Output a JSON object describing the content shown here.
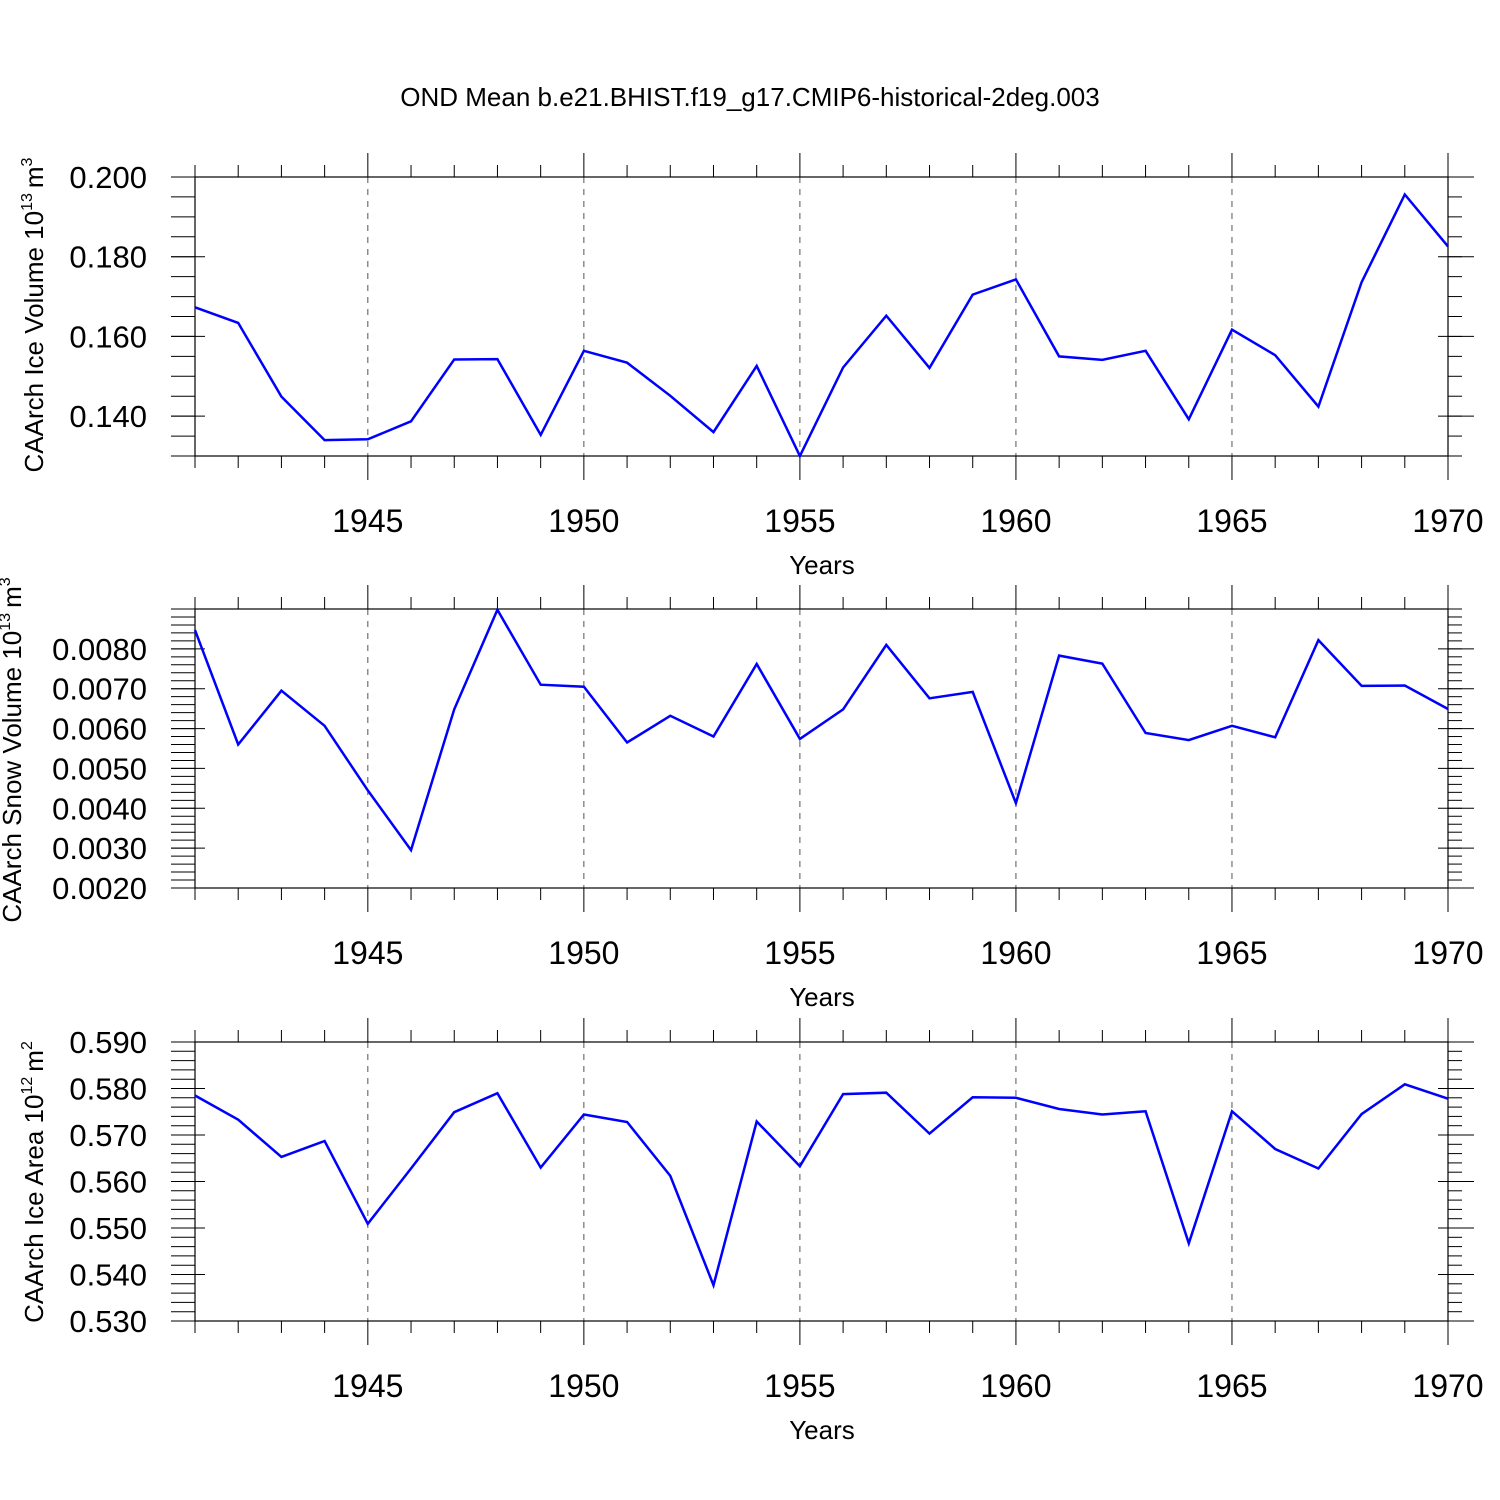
{
  "chart_data": [
    {
      "type": "line",
      "title": "OND Mean b.e21.BHIST.f19_g17.CMIP6-historical-2deg.003",
      "xlabel": "Years",
      "ylabel": "CAArch Ice Volume 10",
      "ylabel_exponent": "13",
      "ylabel_unit": "m",
      "ylabel_unit_exponent": "3",
      "xlim": [
        1941,
        1970
      ],
      "ylim": [
        0.13,
        0.2
      ],
      "x_ticks": [
        "1945",
        "1950",
        "1955",
        "1960",
        "1965",
        "1970"
      ],
      "y_ticks": [
        "0.140",
        "0.160",
        "0.180",
        "0.200"
      ],
      "grid": "dashed vertical at major x ticks",
      "color": "#0000ff",
      "series": [
        {
          "name": "CAArch Ice Volume",
          "x": [
            1941,
            1942,
            1943,
            1944,
            1945,
            1946,
            1947,
            1948,
            1949,
            1950,
            1951,
            1952,
            1953,
            1954,
            1955,
            1956,
            1957,
            1958,
            1959,
            1960,
            1961,
            1962,
            1963,
            1964,
            1965,
            1966,
            1967,
            1968,
            1969,
            1970
          ],
          "values": [
            0.1673,
            0.1634,
            0.1449,
            0.134,
            0.1342,
            0.1387,
            0.1542,
            0.1543,
            0.1353,
            0.1564,
            0.1534,
            0.1451,
            0.136,
            0.1526,
            0.13,
            0.1522,
            0.1652,
            0.1521,
            0.1705,
            0.1743,
            0.155,
            0.1541,
            0.1564,
            0.1392,
            0.1617,
            0.1553,
            0.1424,
            0.1736,
            0.1956,
            0.1826
          ]
        }
      ]
    },
    {
      "type": "line",
      "title": "",
      "xlabel": "Years",
      "ylabel": "CAArch Snow Volume 10",
      "ylabel_exponent": "13",
      "ylabel_unit": "m",
      "ylabel_unit_exponent": "3",
      "xlim": [
        1941,
        1970
      ],
      "ylim": [
        0.002,
        0.009
      ],
      "x_ticks": [
        "1945",
        "1950",
        "1955",
        "1960",
        "1965",
        "1970"
      ],
      "y_ticks": [
        "0.0020",
        "0.0030",
        "0.0040",
        "0.0050",
        "0.0060",
        "0.0070",
        "0.0080"
      ],
      "grid": "dashed vertical at major x ticks",
      "color": "#0000ff",
      "series": [
        {
          "name": "CAArch Snow Volume",
          "x": [
            1941,
            1942,
            1943,
            1944,
            1945,
            1946,
            1947,
            1948,
            1949,
            1950,
            1951,
            1952,
            1953,
            1954,
            1955,
            1956,
            1957,
            1958,
            1959,
            1960,
            1961,
            1962,
            1963,
            1964,
            1965,
            1966,
            1967,
            1968,
            1969,
            1970
          ],
          "values": [
            0.00847,
            0.0056,
            0.00695,
            0.00607,
            0.00445,
            0.00295,
            0.00648,
            0.00898,
            0.0071,
            0.00705,
            0.00565,
            0.00632,
            0.0058,
            0.00762,
            0.00574,
            0.00648,
            0.0081,
            0.00676,
            0.00692,
            0.00413,
            0.00783,
            0.00763,
            0.00589,
            0.00571,
            0.00607,
            0.00578,
            0.00822,
            0.00707,
            0.00708,
            0.00649
          ]
        }
      ]
    },
    {
      "type": "line",
      "title": "",
      "xlabel": "Years",
      "ylabel": "CAArch Ice Area 10",
      "ylabel_exponent": "12",
      "ylabel_unit": "m",
      "ylabel_unit_exponent": "2",
      "xlim": [
        1941,
        1970
      ],
      "ylim": [
        0.53,
        0.59
      ],
      "x_ticks": [
        "1945",
        "1950",
        "1955",
        "1960",
        "1965",
        "1970"
      ],
      "y_ticks": [
        "0.530",
        "0.540",
        "0.550",
        "0.560",
        "0.570",
        "0.580",
        "0.590"
      ],
      "grid": "dashed vertical at major x ticks",
      "color": "#0000ff",
      "series": [
        {
          "name": "CAArch Ice Area",
          "x": [
            1941,
            1942,
            1943,
            1944,
            1945,
            1946,
            1947,
            1948,
            1949,
            1950,
            1951,
            1952,
            1953,
            1954,
            1955,
            1956,
            1957,
            1958,
            1959,
            1960,
            1961,
            1962,
            1963,
            1964,
            1965,
            1966,
            1967,
            1968,
            1969,
            1970
          ],
          "values": [
            0.5785,
            0.5733,
            0.5653,
            0.5687,
            0.5509,
            0.5628,
            0.5749,
            0.579,
            0.563,
            0.5744,
            0.5728,
            0.5612,
            0.5377,
            0.5729,
            0.5633,
            0.5788,
            0.5791,
            0.5703,
            0.5781,
            0.578,
            0.5756,
            0.5744,
            0.5751,
            0.5467,
            0.5751,
            0.567,
            0.5628,
            0.5745,
            0.5809,
            0.5778
          ]
        }
      ]
    }
  ]
}
